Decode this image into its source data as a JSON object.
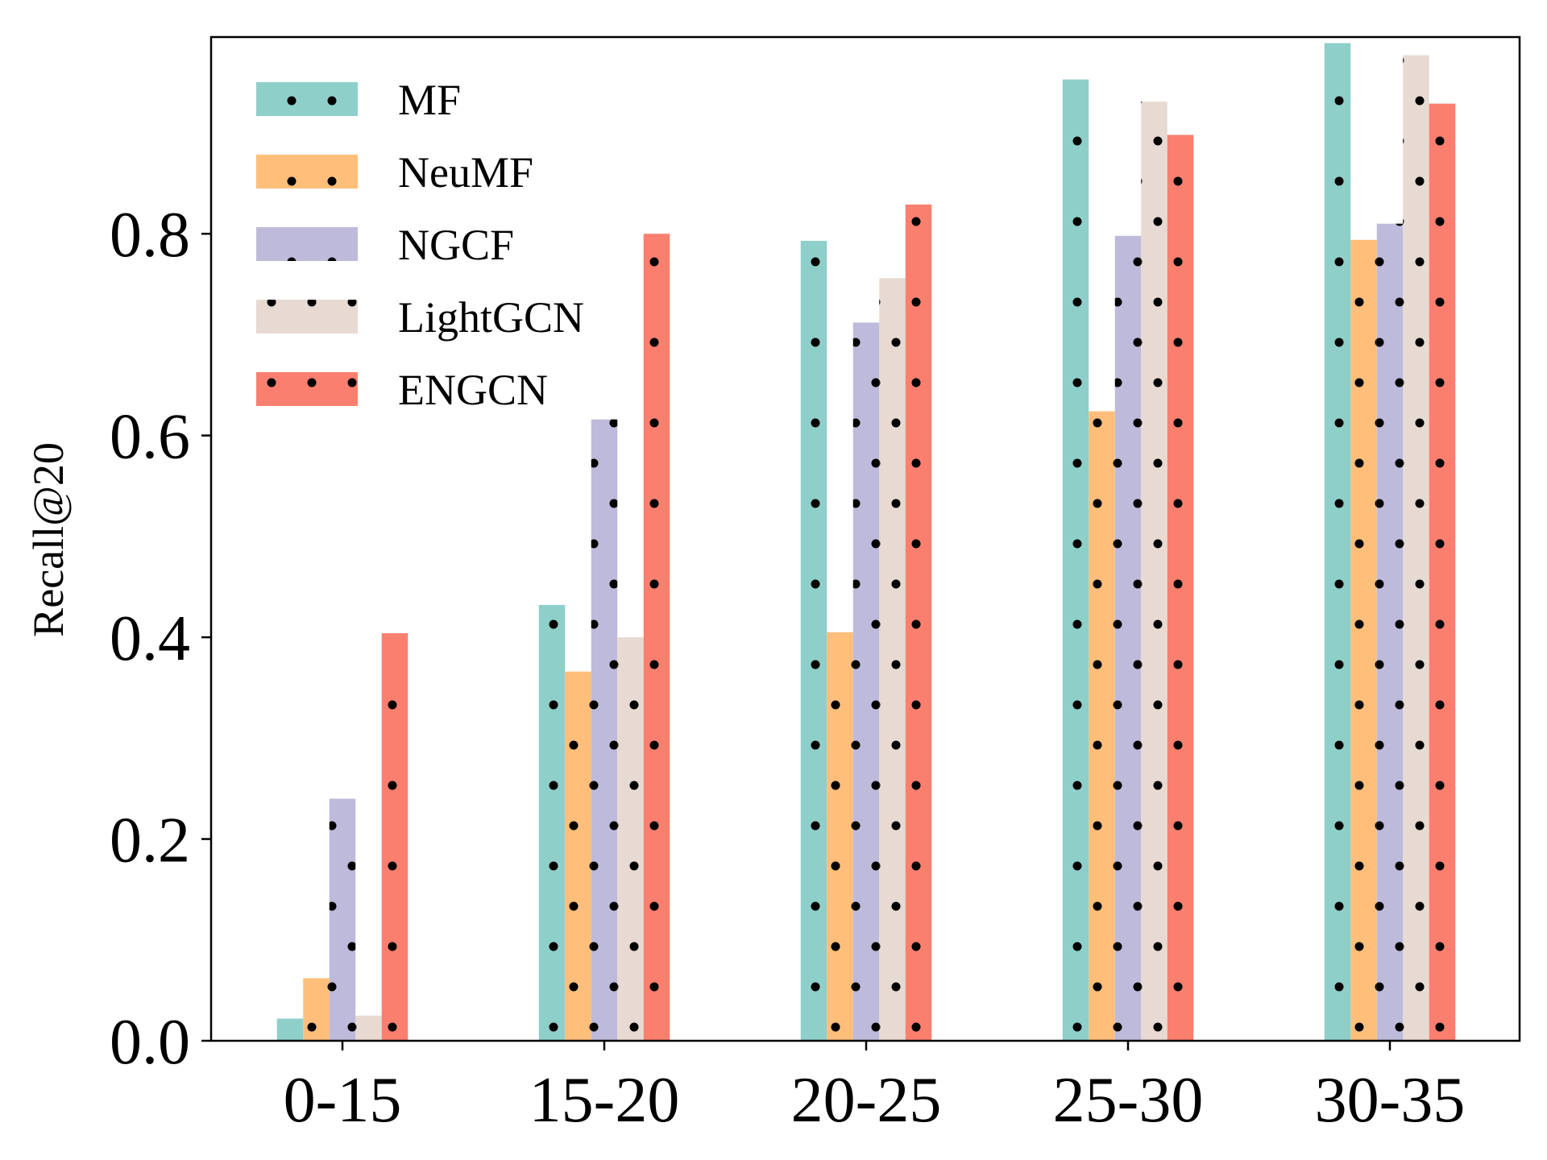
{
  "chart_data": {
    "type": "bar",
    "categories": [
      "0-15",
      "15-20",
      "20-25",
      "25-30",
      "30-35"
    ],
    "series": [
      {
        "name": "MF",
        "color": "#8ecfc9",
        "values": [
          0.022,
          0.432,
          0.793,
          0.953,
          0.989
        ]
      },
      {
        "name": "NeuMF",
        "color": "#ffbe7a",
        "values": [
          0.062,
          0.366,
          0.405,
          0.624,
          0.794
        ]
      },
      {
        "name": "NGCF",
        "color": "#bebadb",
        "values": [
          0.24,
          0.616,
          0.712,
          0.798,
          0.81
        ]
      },
      {
        "name": "LightGCN",
        "color": "#e7dad2",
        "values": [
          0.025,
          0.4,
          0.756,
          0.931,
          0.977
        ]
      },
      {
        "name": "ENGCN",
        "color": "#fa7f6f",
        "values": [
          0.404,
          0.8,
          0.829,
          0.898,
          0.929
        ]
      }
    ],
    "hatch": "dots",
    "title": "",
    "xlabel": "",
    "ylabel": "Recall@20",
    "ylim": [
      0,
      0.995
    ],
    "yticks": [
      0.0,
      0.2,
      0.4,
      0.6,
      0.8
    ],
    "ytick_labels": [
      "0.0",
      "0.2",
      "0.4",
      "0.6",
      "0.8"
    ],
    "legend_position": "upper-left",
    "grid": false
  }
}
